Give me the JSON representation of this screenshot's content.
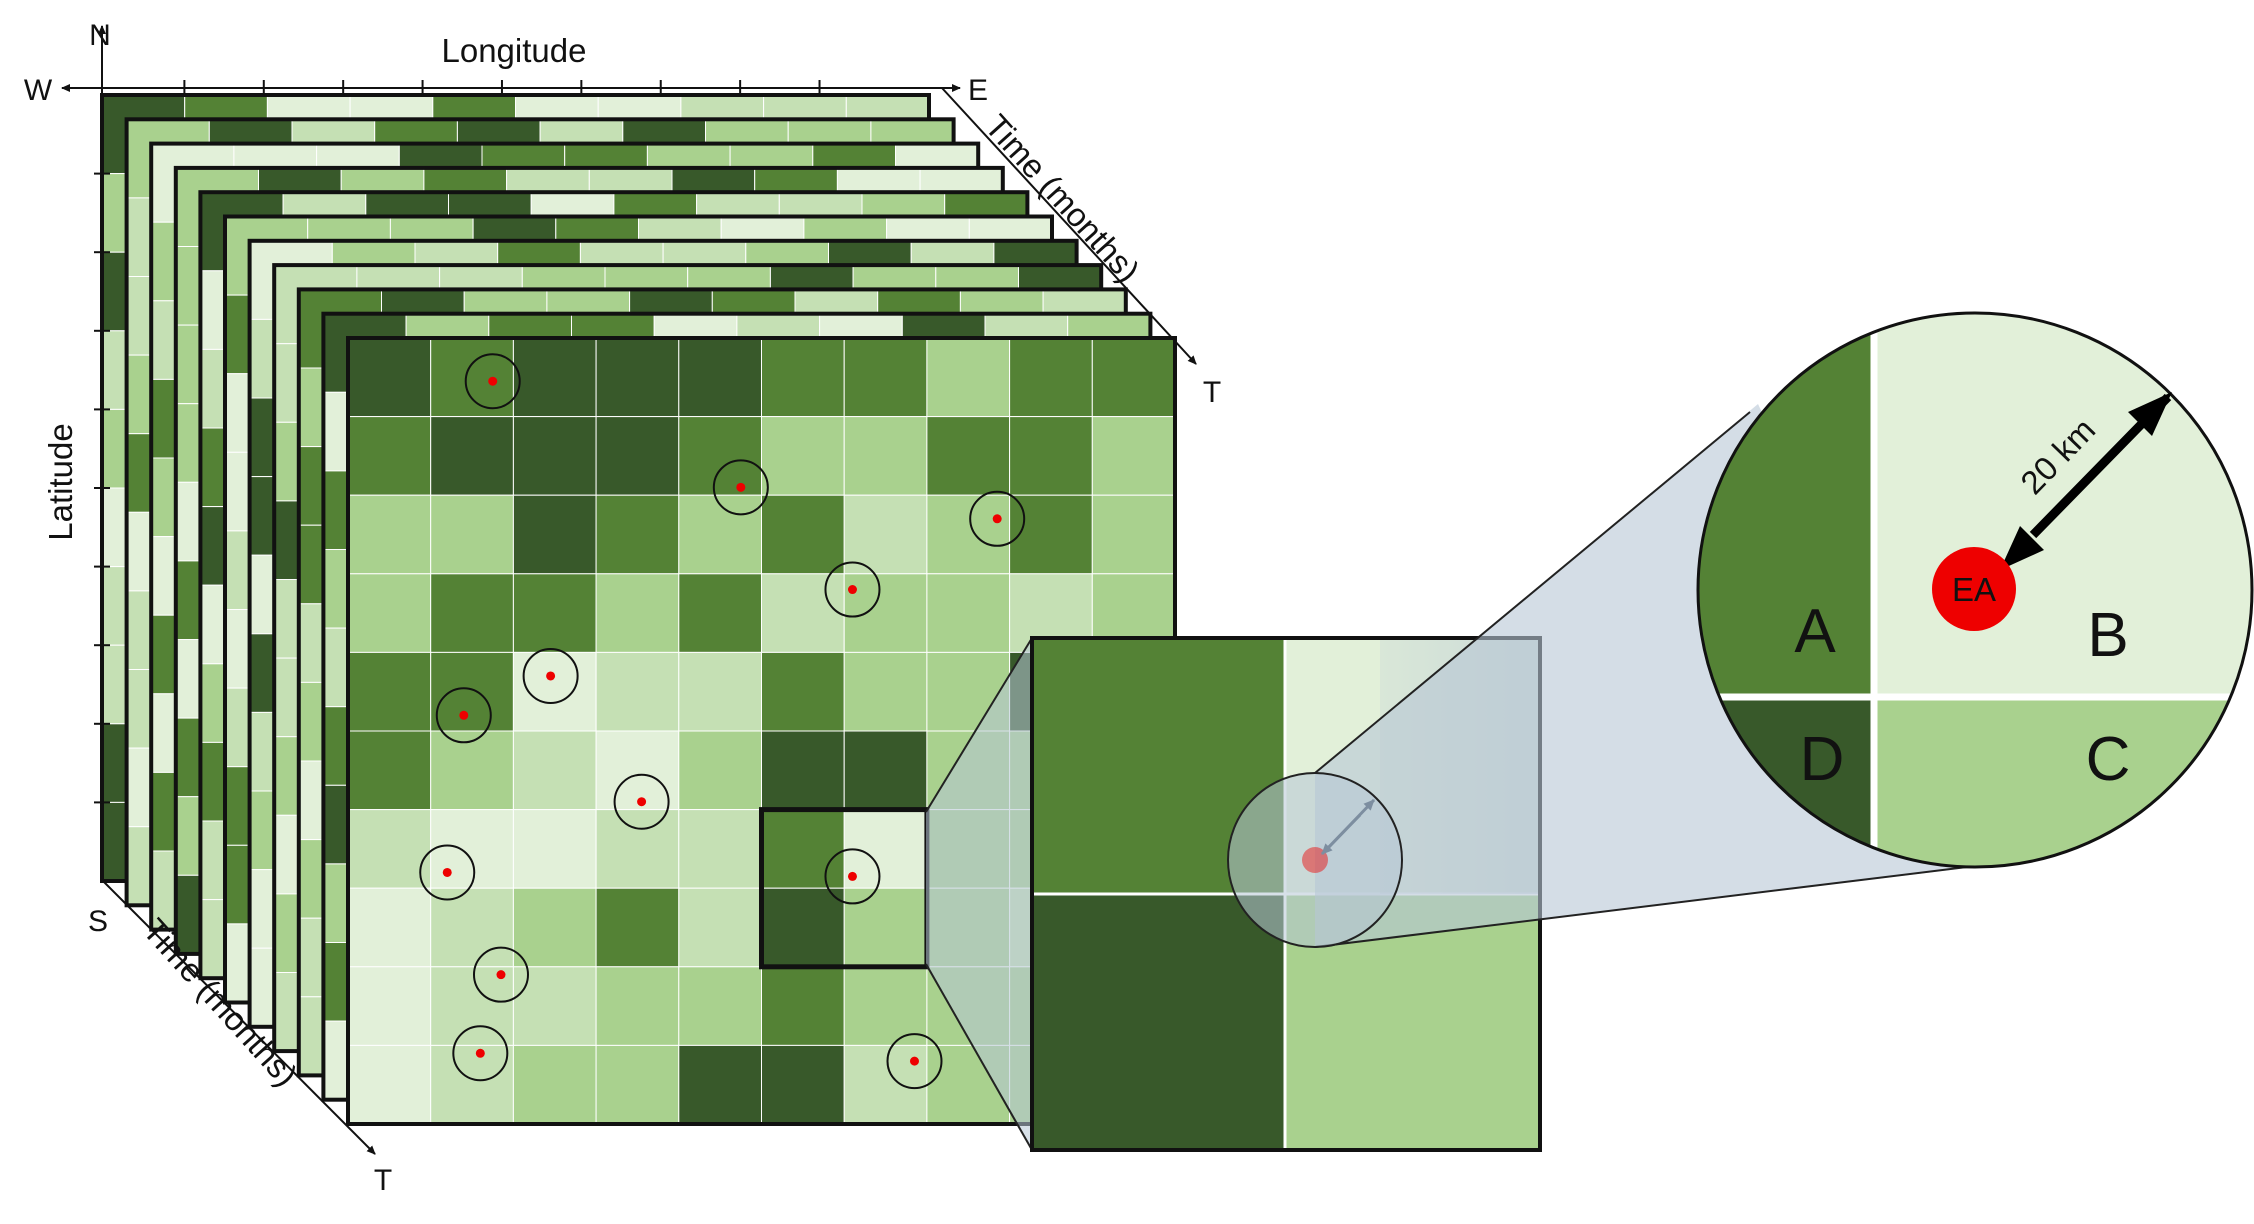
{
  "labels": {
    "north": "N",
    "south": "S",
    "west": "W",
    "east": "E",
    "longitude": "Longitude",
    "latitude": "Latitude",
    "time_top": "Time (months)",
    "time_bottom": "Time (months)",
    "t_top": "T",
    "t_bottom": "T"
  },
  "zoom_circle": {
    "radius_label": "20 km",
    "center_label": "EA",
    "cell_labels": [
      "A",
      "B",
      "C",
      "D"
    ]
  },
  "colors": {
    "green_darkest": "#38592a",
    "green_dark": "#548235",
    "green_mid": "#a9d18e",
    "green_light": "#c5e0b4",
    "green_lightest": "#e2f0d9",
    "enumeration_area": "#ee0000",
    "zoom_overlay": "#b7c6d6"
  },
  "grid": {
    "layers": 11,
    "front_cells": [
      [
        0,
        1,
        0,
        0,
        0,
        1,
        1,
        2,
        1,
        1
      ],
      [
        1,
        0,
        0,
        0,
        1,
        2,
        2,
        1,
        1,
        2
      ],
      [
        2,
        2,
        0,
        1,
        2,
        1,
        3,
        2,
        1,
        2
      ],
      [
        2,
        1,
        1,
        2,
        1,
        3,
        2,
        2,
        3,
        2
      ],
      [
        1,
        1,
        4,
        3,
        3,
        1,
        2,
        2,
        0,
        2
      ],
      [
        1,
        2,
        3,
        4,
        2,
        0,
        0,
        2,
        2,
        2
      ],
      [
        3,
        4,
        4,
        3,
        3,
        1,
        4,
        2,
        2,
        2
      ],
      [
        4,
        3,
        2,
        1,
        3,
        0,
        2,
        2,
        3,
        2
      ],
      [
        4,
        3,
        3,
        2,
        2,
        1,
        2,
        2,
        2,
        2
      ],
      [
        4,
        3,
        2,
        2,
        0,
        0,
        3,
        2,
        2,
        2
      ]
    ],
    "enumeration_areas": [
      [
        1.75,
        0.55
      ],
      [
        4.75,
        1.9
      ],
      [
        7.85,
        2.3
      ],
      [
        6.1,
        3.2
      ],
      [
        2.45,
        4.3
      ],
      [
        1.4,
        4.8
      ],
      [
        3.55,
        5.9
      ],
      [
        1.2,
        6.8
      ],
      [
        6.1,
        6.85
      ],
      [
        1.85,
        8.1
      ],
      [
        1.6,
        9.1
      ],
      [
        6.85,
        9.2
      ]
    ],
    "zoom_cells": [
      1,
      4,
      0,
      2
    ]
  }
}
